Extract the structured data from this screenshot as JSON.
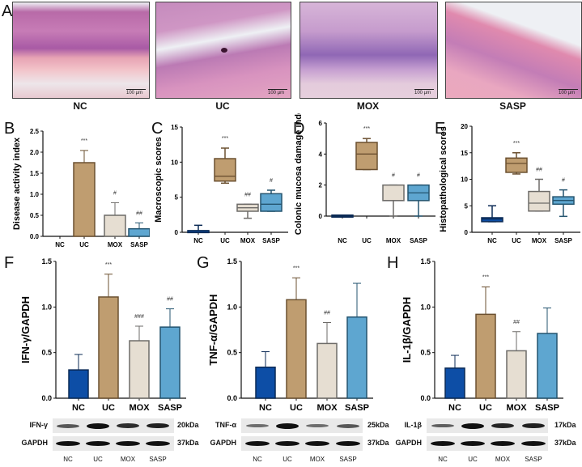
{
  "figure": {
    "panels": {
      "A": {
        "letter": "A",
        "images": [
          {
            "label": "NC",
            "scale": "100 µm"
          },
          {
            "label": "UC",
            "scale": "100 µm"
          },
          {
            "label": "MOX",
            "scale": "100 µm"
          },
          {
            "label": "SASP",
            "scale": "100 µm"
          }
        ]
      },
      "B": {
        "letter": "B"
      },
      "C": {
        "letter": "C"
      },
      "D": {
        "letter": "D"
      },
      "E": {
        "letter": "E"
      },
      "F": {
        "letter": "F"
      },
      "G": {
        "letter": "G"
      },
      "H": {
        "letter": "H"
      }
    },
    "blots": [
      {
        "target": "IFN-γ",
        "target_kda": "20kDa",
        "control": "GAPDH",
        "control_kda": "37kDa",
        "lanes": [
          "NC",
          "UC",
          "MOX",
          "SASP"
        ]
      },
      {
        "target": "TNF-α",
        "target_kda": "25kDa",
        "control": "GAPDH",
        "control_kda": "37kDa",
        "lanes": [
          "NC",
          "UC",
          "MOX",
          "SASP"
        ]
      },
      {
        "target": "IL-1β",
        "target_kda": "17kDa",
        "control": "GAPDH",
        "control_kda": "37kDa",
        "lanes": [
          "NC",
          "UC",
          "MOX",
          "SASP"
        ]
      }
    ],
    "colors": {
      "NC": "#0d4ea6",
      "UC": "#bf9d70",
      "MOX": "#e6ded2",
      "SASP": "#5ea6d0",
      "NC_edge": "#0b2a55",
      "UC_edge": "#6b5030",
      "MOX_edge": "#6d6b68",
      "SASP_edge": "#24546f"
    }
  },
  "chart_data": [
    {
      "panel": "B",
      "type": "bar",
      "title": "",
      "xlabel": "",
      "ylabel": "Disease activity index",
      "categories": [
        "NC",
        "UC",
        "MOX",
        "SASP"
      ],
      "values": [
        0,
        1.75,
        0.5,
        0.18
      ],
      "errors": [
        0,
        0.29,
        0.3,
        0.14
      ],
      "significance": [
        "",
        "***",
        "#",
        "##"
      ],
      "ylim": [
        0,
        2.5
      ],
      "yticks": [
        "0.0",
        "0.5",
        "1.0",
        "1.5",
        "2.0",
        "2.5"
      ],
      "grid": false
    },
    {
      "panel": "C",
      "type": "box",
      "title": "",
      "xlabel": "",
      "ylabel": "Macroscopic scores",
      "categories": [
        "NC",
        "UC",
        "MOX",
        "SASP"
      ],
      "boxes": [
        {
          "min": 0,
          "q1": 0,
          "median": 0,
          "q3": 0.1,
          "max": 1
        },
        {
          "min": 7,
          "q1": 7.3,
          "median": 8,
          "q3": 10.5,
          "max": 12
        },
        {
          "min": 2,
          "q1": 3,
          "median": 3.5,
          "q3": 4,
          "max": 4
        },
        {
          "min": 3,
          "q1": 3,
          "median": 4,
          "q3": 5.5,
          "max": 6
        }
      ],
      "significance": [
        "",
        "***",
        "##",
        "#"
      ],
      "ylim": [
        0,
        15
      ],
      "yticks": [
        "0",
        "5",
        "10",
        "15"
      ],
      "grid": false
    },
    {
      "panel": "D",
      "type": "box",
      "title": "",
      "xlabel": "",
      "ylabel": "Colonic mucosa damage index",
      "categories": [
        "NC",
        "UC",
        "MOX",
        "SASP"
      ],
      "boxes": [
        {
          "min": 0,
          "q1": 0,
          "median": 0,
          "q3": 0,
          "max": 0
        },
        {
          "min": 3,
          "q1": 3,
          "median": 4,
          "q3": 4.75,
          "max": 5
        },
        {
          "min": 0,
          "q1": 1,
          "median": 1,
          "q3": 2,
          "max": 2
        },
        {
          "min": 0,
          "q1": 1,
          "median": 1.5,
          "q3": 2,
          "max": 2
        }
      ],
      "significance": [
        "",
        "***",
        "#",
        "#"
      ],
      "ylim": [
        0,
        6
      ],
      "yticks": [
        "0",
        "2",
        "4",
        "6"
      ],
      "grid": false
    },
    {
      "panel": "E",
      "type": "box",
      "title": "",
      "xlabel": "",
      "ylabel": "Histopathological scores",
      "categories": [
        "NC",
        "UC",
        "MOX",
        "SASP"
      ],
      "boxes": [
        {
          "min": 2,
          "q1": 2,
          "median": 2.5,
          "q3": 2.75,
          "max": 5
        },
        {
          "min": 11,
          "q1": 11.3,
          "median": 13,
          "q3": 14,
          "max": 15
        },
        {
          "min": 4,
          "q1": 4,
          "median": 5.5,
          "q3": 7.7,
          "max": 10
        },
        {
          "min": 3,
          "q1": 5.3,
          "median": 6,
          "q3": 6.7,
          "max": 8
        }
      ],
      "significance": [
        "",
        "***",
        "##",
        "#"
      ],
      "ylim": [
        0,
        20
      ],
      "yticks": [
        "0",
        "5",
        "10",
        "15",
        "20"
      ],
      "grid": false
    },
    {
      "panel": "F",
      "type": "bar",
      "title": "",
      "xlabel": "",
      "ylabel": "IFN-γ/GAPDH",
      "categories": [
        "NC",
        "UC",
        "MOX",
        "SASP"
      ],
      "values": [
        0.31,
        1.11,
        0.63,
        0.78
      ],
      "errors": [
        0.17,
        0.25,
        0.16,
        0.2
      ],
      "significance": [
        "",
        "***",
        "###",
        "##"
      ],
      "ylim": [
        0,
        1.5
      ],
      "yticks": [
        "0.0",
        "0.5",
        "1.0",
        "1.5"
      ],
      "grid": false
    },
    {
      "panel": "G",
      "type": "bar",
      "title": "",
      "xlabel": "",
      "ylabel": "TNF-α/GAPDH",
      "categories": [
        "NC",
        "UC",
        "MOX",
        "SASP"
      ],
      "values": [
        0.34,
        1.08,
        0.6,
        0.89
      ],
      "errors": [
        0.17,
        0.24,
        0.23,
        0.37
      ],
      "significance": [
        "",
        "***",
        "##",
        ""
      ],
      "ylim": [
        0,
        1.5
      ],
      "yticks": [
        "0.0",
        "0.5",
        "1.0",
        "1.5"
      ],
      "grid": false
    },
    {
      "panel": "H",
      "type": "bar",
      "title": "",
      "xlabel": "",
      "ylabel": "IL-1β/GAPDH",
      "categories": [
        "NC",
        "UC",
        "MOX",
        "SASP"
      ],
      "values": [
        0.33,
        0.92,
        0.52,
        0.71
      ],
      "errors": [
        0.14,
        0.3,
        0.21,
        0.28
      ],
      "significance": [
        "",
        "***",
        "##",
        ""
      ],
      "ylim": [
        0,
        1.5
      ],
      "yticks": [
        "0.0",
        "0.5",
        "1.0",
        "1.5"
      ],
      "grid": false
    }
  ]
}
